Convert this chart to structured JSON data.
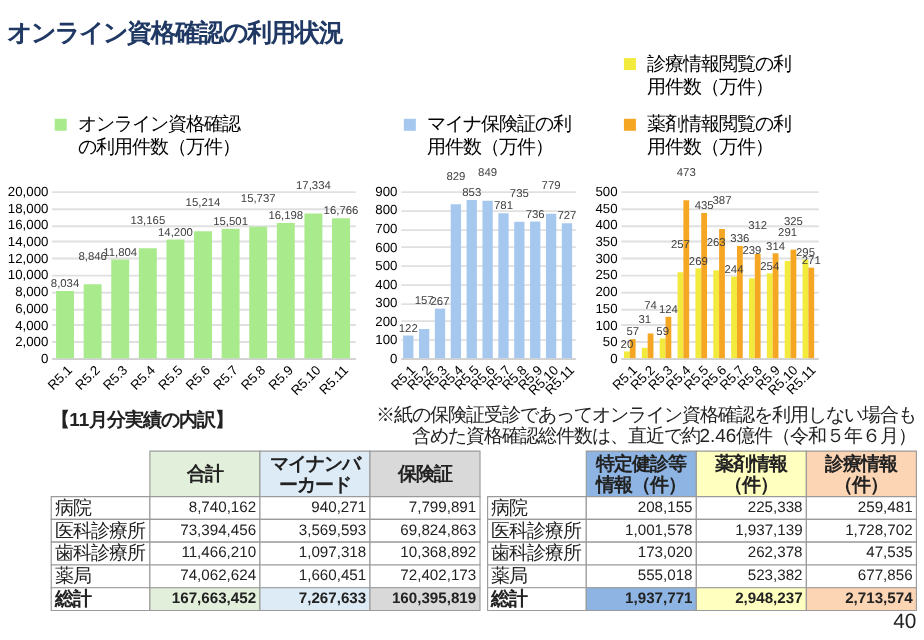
{
  "chart_data": [
    {
      "type": "bar",
      "title": "オンライン資格確認の利用状況",
      "categories": [
        "R5.1",
        "R5.2",
        "R5.3",
        "R5.4",
        "R5.5",
        "R5.6",
        "R5.7",
        "R5.8",
        "R5.9",
        "R5.10",
        "R5.11"
      ],
      "series": [
        {
          "name": "オンライン資格確認の利用件数（万件）",
          "color": "#a9eb8c",
          "values": [
            8034,
            8846,
            11804,
            13165,
            14200,
            15214,
            15501,
            15737,
            16198,
            17334,
            16766
          ],
          "value_labels": [
            "8,034",
            "8,846",
            "11,804",
            "13,165",
            "14,200",
            "15,214",
            "15,501",
            "15,737",
            "16,198",
            "17,334",
            "16,766"
          ]
        }
      ],
      "ylim": [
        0,
        20000
      ],
      "yticks": [
        0,
        {
          "value": 2000,
          "label": "2,000"
        },
        {
          "value": 4000,
          "label": "4,000"
        },
        {
          "value": 6000,
          "label": "6,000"
        },
        {
          "value": 8000,
          "label": "8,000"
        },
        {
          "value": 10000,
          "label": "10,000"
        },
        {
          "value": 12000,
          "label": "12,000"
        },
        {
          "value": 14000,
          "label": "14,000"
        },
        {
          "value": 16000,
          "label": "16,000"
        },
        {
          "value": 18000,
          "label": "18,000"
        },
        {
          "value": 20000,
          "label": "20,000"
        }
      ],
      "grid": "y",
      "legend": "top",
      "data_labels": true
    },
    {
      "type": "bar",
      "categories": [
        "R5.1",
        "R5.2",
        "R5.3",
        "R5.4",
        "R5.5",
        "R5.6",
        "R5.7",
        "R5.8",
        "R5.9",
        "R5.10",
        "R5.11"
      ],
      "series": [
        {
          "name": "マイナ保険証の利用件数（万件）",
          "color": "#a6c8ef",
          "values": [
            122,
            157,
            267,
            829,
            853,
            849,
            781,
            735,
            736,
            779,
            727
          ]
        }
      ],
      "ylim": [
        0,
        900
      ],
      "yticks": [
        0,
        100,
        200,
        300,
        400,
        500,
        600,
        700,
        800,
        900
      ],
      "grid": "y",
      "legend": "top",
      "data_labels": true
    },
    {
      "type": "bar",
      "categories": [
        "R5.1",
        "R5.2",
        "R5.3",
        "R5.4",
        "R5.5",
        "R5.6",
        "R5.7",
        "R5.8",
        "R5.9",
        "R5.10",
        "R5.11"
      ],
      "series": [
        {
          "name": "診療情報閲覧の利用件数（万件）",
          "color": "#f2ea3c",
          "values": [
            20,
            31,
            59,
            257,
            269,
            263,
            244,
            239,
            254,
            291,
            295
          ]
        },
        {
          "name": "薬剤情報閲覧の利用件数（万件）",
          "color": "#f5a623",
          "values": [
            57,
            74,
            124,
            473,
            435,
            387,
            336,
            312,
            314,
            325,
            271
          ]
        }
      ],
      "ylim": [
        0,
        500
      ],
      "yticks": [
        0,
        50,
        100,
        150,
        200,
        250,
        300,
        350,
        400,
        450,
        500
      ],
      "grid": "y",
      "legend": "top",
      "data_labels": true
    },
    {
      "type": "other",
      "title": "【11月分実績の内訳】",
      "categories": [
        "合計",
        "マイナンバーカード",
        "保険証"
      ],
      "y_categories": [
        "病院",
        "医科診療所",
        "歯科診療所",
        "薬局",
        "総計"
      ],
      "colors": [
        "#e2efda",
        "#ddebf7",
        "#d9d9d9"
      ],
      "cell_labels": [
        [
          "8,740,162",
          "940,271",
          "7,799,891"
        ],
        [
          "73,394,456",
          "3,569,593",
          "69,824,863"
        ],
        [
          "11,466,210",
          "1,097,318",
          "10,368,892"
        ],
        [
          "74,062,624",
          "1,660,451",
          "72,402,173"
        ],
        [
          "167,663,452",
          "7,267,633",
          "160,395,819"
        ]
      ],
      "annotations": [
        "※紙の保険証受診であってオンライン資格確認を利用しない場合も含めた資格確認総件数は、直近で約2.46億件（令和５年６月）",
        "40"
      ]
    },
    {
      "type": "other",
      "categories": [
        "特定健診等情報（件）",
        "薬剤情報（件）",
        "診療情報（件）"
      ],
      "y_categories": [
        "病院",
        "医科診療所",
        "歯科診療所",
        "薬局",
        "総計"
      ],
      "colors": [
        "#8db4e2",
        "#ffffc0",
        "#fcd5b4"
      ],
      "cell_labels": [
        [
          "208,155",
          "225,338",
          "259,481"
        ],
        [
          "1,001,578",
          "1,937,139",
          "1,728,702"
        ],
        [
          "173,020",
          "262,378",
          "47,535"
        ],
        [
          "555,018",
          "523,382",
          "677,856"
        ],
        [
          "1,937,771",
          "2,948,237",
          "2,713,574"
        ]
      ]
    }
  ]
}
